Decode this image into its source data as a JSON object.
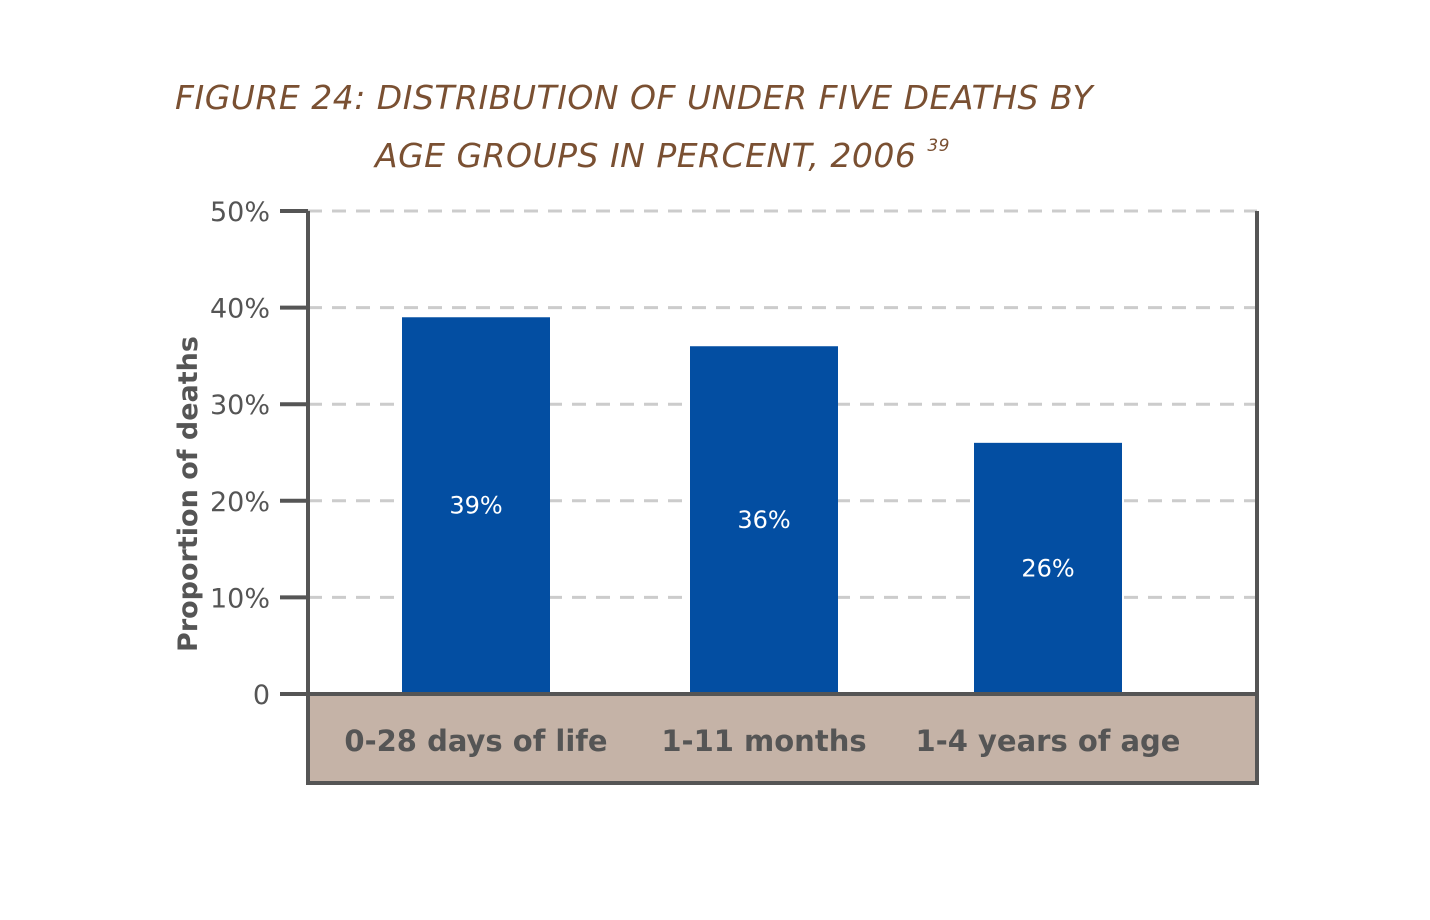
{
  "figure": {
    "title_line1": "FIGURE 24: DISTRIBUTION OF UNDER FIVE DEATHS BY",
    "title_line2": "AGE GROUPS IN PERCENT, 2006",
    "title_ref": "39"
  },
  "chart_data": {
    "type": "bar",
    "categories": [
      "0-28 days of life",
      "1-11 months",
      "1-4 years of age"
    ],
    "values": [
      39,
      36,
      26
    ],
    "data_labels": [
      "39%",
      "36%",
      "26%"
    ],
    "ylabel": "Proportion of deaths",
    "ylim": [
      0,
      50
    ],
    "yticks": [
      {
        "value": 0,
        "label": "0"
      },
      {
        "value": 10,
        "label": "10%"
      },
      {
        "value": 20,
        "label": "20%"
      },
      {
        "value": 30,
        "label": "30%"
      },
      {
        "value": 40,
        "label": "40%"
      },
      {
        "value": 50,
        "label": "50%"
      }
    ],
    "grid": true,
    "colors": {
      "bar": "#034ea2",
      "category_band": "#c5b3a7",
      "axis": "#555555",
      "grid": "#cccccc",
      "title": "#7a5032"
    }
  }
}
